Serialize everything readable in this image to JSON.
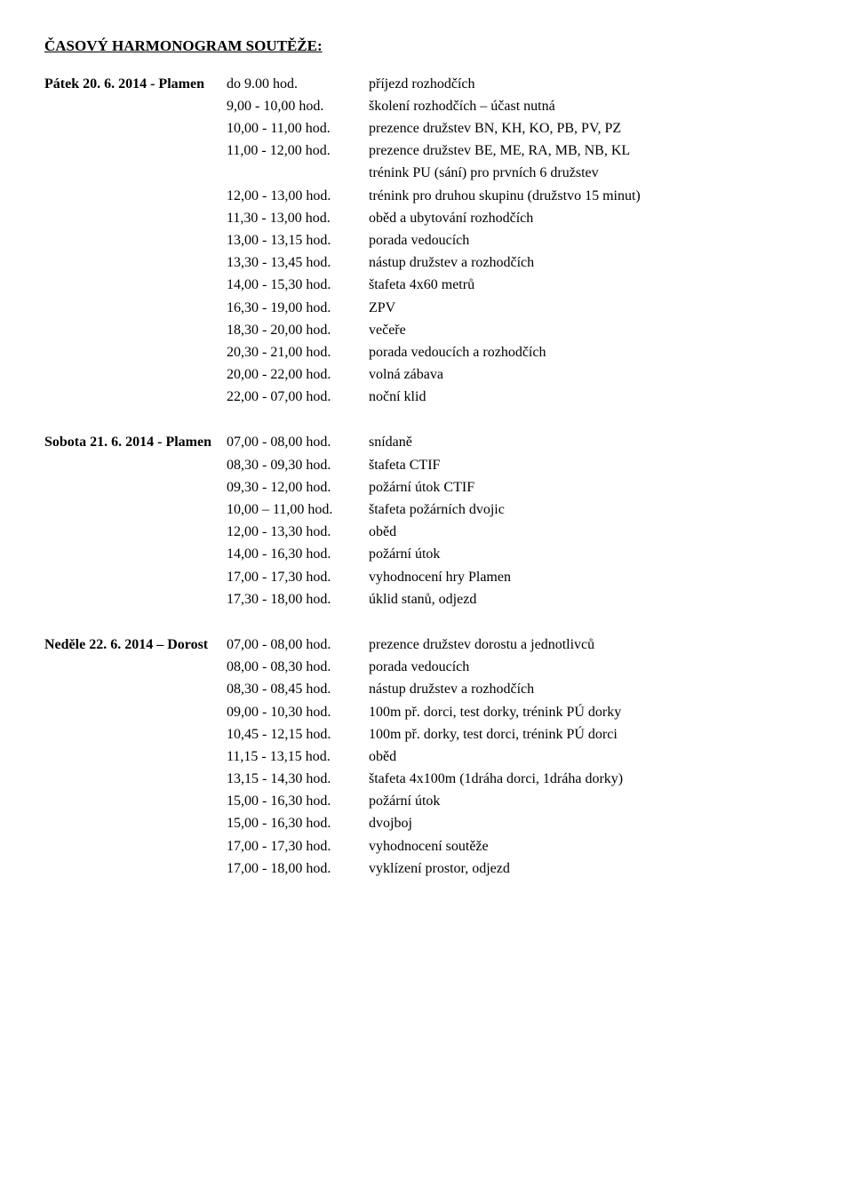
{
  "title": "ČASOVÝ HARMONOGRAM SOUTĚŽE:",
  "patek": {
    "lead": "Pátek 20.  6. 2014 - Plamen",
    "r1_time": "do  9.00 hod.",
    "r1_desc": "příjezd rozhodčích",
    "r2_time": "9,00 - 10,00 hod.",
    "r2_desc": "školení rozhodčích – účast nutná",
    "r3_time": "10,00 - 11,00 hod.",
    "r3_desc": "prezence družstev BN, KH, KO, PB, PV, PZ",
    "r4_time": "11,00 - 12,00 hod.",
    "r4_desc": "prezence družstev BE, ME, RA, MB, NB, KL",
    "r4b_desc": "trénink PU (sání) pro prvních 6 družstev",
    "r5_time": "12,00 - 13,00 hod.",
    "r5_desc": "trénink pro druhou skupinu (družstvo 15 minut)",
    "r6_time": "11,30 - 13,00 hod.",
    "r6_desc": "oběd a ubytování rozhodčích",
    "r7_time": "13,00 - 13,15 hod.",
    "r7_desc": "porada vedoucích",
    "r8_time": "13,30 - 13,45 hod.",
    "r8_desc": "nástup družstev a rozhodčích",
    "r9_time": "14,00 - 15,30 hod.",
    "r9_desc": "štafeta 4x60 metrů",
    "r10_time": "16,30 - 19,00 hod.",
    "r10_desc": "ZPV",
    "r11_time": "18,30 - 20,00 hod.",
    "r11_desc": "večeře",
    "r12_time": "20,30 - 21,00 hod.",
    "r12_desc": "porada vedoucích a rozhodčích",
    "r13_time": "20,00 - 22,00 hod.",
    "r13_desc": "volná zábava",
    "r14_time": "22,00 - 07,00 hod.",
    "r14_desc": "noční klid"
  },
  "sobota": {
    "lead": "Sobota 21. 6. 2014 - Plamen",
    "r1_time": "07,00 - 08,00 hod.",
    "r1_desc": "snídaně",
    "r2_time": "08,30 - 09,30 hod.",
    "r2_desc": "štafeta CTIF",
    "r3_time": "09,30 - 12,00 hod.",
    "r3_desc": "požární útok CTIF",
    "r4_time": "10,00 – 11,00 hod.",
    "r4_desc": "štafeta požárních dvojic",
    "r5_time": "12,00 - 13,30 hod.",
    "r5_desc": "oběd",
    "r6_time": "14,00 - 16,30 hod.",
    "r6_desc": "požární útok",
    "r7_time": "17,00 - 17,30 hod.",
    "r7_desc": "vyhodnocení hry Plamen",
    "r8_time": "17,30 - 18,00 hod.",
    "r8_desc": "úklid stanů, odjezd"
  },
  "nedele": {
    "lead": "Neděle 22. 6. 2014 – Dorost",
    "r1_time": "07,00 - 08,00 hod.",
    "r1_desc": "prezence družstev dorostu a jednotlivců",
    "r2_time": "08,00 - 08,30 hod.",
    "r2_desc": "porada vedoucích",
    "r3_time": "08,30 - 08,45 hod.",
    "r3_desc": "nástup družstev a rozhodčích",
    "r4_time": "09,00 - 10,30 hod.",
    "r4_desc": "100m př. dorci, test dorky, trénink PÚ dorky",
    "r5_time": "10,45 - 12,15 hod.",
    "r5_desc": "100m př. dorky, test dorci, trénink PÚ dorci",
    "r6_time": "11,15 - 13,15 hod.",
    "r6_desc": "oběd",
    "r7_time": "13,15 - 14,30 hod.",
    "r7_desc": "štafeta 4x100m (1dráha dorci, 1dráha dorky)",
    "r8_time": "15,00 - 16,30 hod.",
    "r8_desc": "požární útok",
    "r9_time": "15,00 - 16,30 hod.",
    "r9_desc": "dvojboj",
    "r10_time": "17,00 - 17,30 hod.",
    "r10_desc": "vyhodnocení soutěže",
    "r11_time": "17,00 - 18,00 hod.",
    "r11_desc": "vyklízení prostor, odjezd"
  }
}
